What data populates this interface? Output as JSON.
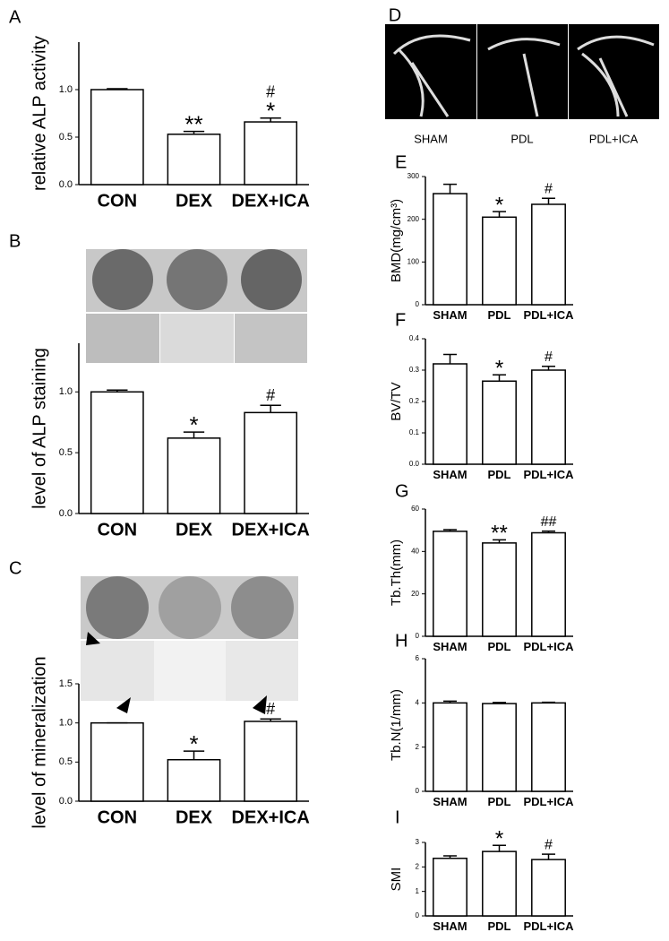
{
  "chart_data": [
    {
      "type": "bar",
      "label": "A",
      "ylabel": "relative ALP activity",
      "categories": [
        "CON",
        "DEX",
        "DEX+ICA"
      ],
      "values": [
        1.0,
        0.53,
        0.66
      ],
      "errors": [
        0.01,
        0.03,
        0.04
      ],
      "annotations": [
        null,
        [
          "**"
        ],
        [
          "#",
          "*"
        ]
      ],
      "ylim": [
        0,
        1.5
      ],
      "yticks": [
        {
          "value": 0,
          "label": "0.0"
        },
        {
          "value": 0.5,
          "label": "0.5"
        },
        {
          "value": 1,
          "label": "1.0"
        }
      ],
      "color": "#ffffff"
    },
    {
      "type": "bar",
      "label": "B",
      "ylabel": "level of ALP staining",
      "categories": [
        "CON",
        "DEX",
        "DEX+ICA"
      ],
      "values": [
        1.0,
        0.62,
        0.83
      ],
      "errors": [
        0.015,
        0.05,
        0.06
      ],
      "annotations": [
        null,
        [
          "*"
        ],
        [
          "#"
        ]
      ],
      "ylim": [
        0,
        1.4
      ],
      "yticks": [
        {
          "value": 0,
          "label": "0.0"
        },
        {
          "value": 0.5,
          "label": "0.5"
        },
        {
          "value": 1,
          "label": "1.0"
        }
      ],
      "color": "#ffffff"
    },
    {
      "type": "bar",
      "label": "C",
      "ylabel": "level of mineralization",
      "categories": [
        "CON",
        "DEX",
        "DEX+ICA"
      ],
      "values": [
        1.0,
        0.53,
        1.02
      ],
      "errors": [
        0.0,
        0.11,
        0.03
      ],
      "annotations": [
        null,
        [
          "*"
        ],
        [
          "#"
        ]
      ],
      "ylim": [
        0,
        1.5
      ],
      "yticks": [
        {
          "value": 0,
          "label": "0.0"
        },
        {
          "value": 0.5,
          "label": "0.5"
        },
        {
          "value": 1,
          "label": "1.0"
        },
        {
          "value": 1.5,
          "label": "1.5"
        }
      ],
      "color": "#ffffff"
    },
    {
      "type": "bar",
      "label": "E",
      "ylabel": "BMD(mg/cm³)",
      "categories": [
        "SHAM",
        "PDL",
        "PDL+ICA"
      ],
      "values": [
        260,
        205,
        235
      ],
      "errors": [
        22,
        13,
        14
      ],
      "annotations": [
        null,
        [
          "*"
        ],
        [
          "#"
        ]
      ],
      "ylim": [
        0,
        300
      ],
      "yticks": [
        0,
        100,
        200,
        300
      ],
      "color": "#ffffff"
    },
    {
      "type": "bar",
      "label": "F",
      "ylabel": "BV/TV",
      "categories": [
        "SHAM",
        "PDL",
        "PDL+ICA"
      ],
      "values": [
        0.32,
        0.265,
        0.3
      ],
      "errors": [
        0.03,
        0.02,
        0.012
      ],
      "annotations": [
        null,
        [
          "*"
        ],
        [
          "#"
        ]
      ],
      "ylim": [
        0,
        0.4
      ],
      "yticks": [
        {
          "value": 0,
          "label": "0.0"
        },
        0.1,
        0.2,
        0.3,
        0.4
      ],
      "color": "#ffffff"
    },
    {
      "type": "bar",
      "label": "G",
      "ylabel": "Tb.Th(mm)",
      "categories": [
        "SHAM",
        "PDL",
        "PDL+ICA"
      ],
      "values": [
        49.5,
        44,
        48.8
      ],
      "errors": [
        0.8,
        1.5,
        0.8
      ],
      "annotations": [
        null,
        [
          "**"
        ],
        [
          "##"
        ]
      ],
      "ylim": [
        0,
        60
      ],
      "yticks": [
        0,
        20,
        40,
        60
      ],
      "color": "#ffffff"
    },
    {
      "type": "bar",
      "label": "H",
      "ylabel": "Tb.N(1/mm)",
      "categories": [
        "SHAM",
        "PDL",
        "PDL+ICA"
      ],
      "values": [
        4.0,
        3.97,
        4.0
      ],
      "errors": [
        0.08,
        0.05,
        0.03
      ],
      "annotations": [
        null,
        null,
        null
      ],
      "ylim": [
        0,
        6
      ],
      "yticks": [
        0,
        2,
        4,
        6
      ],
      "color": "#ffffff"
    },
    {
      "type": "bar",
      "label": "I",
      "ylabel": "SMI",
      "categories": [
        "SHAM",
        "PDL",
        "PDL+ICA"
      ],
      "values": [
        2.35,
        2.63,
        2.3
      ],
      "errors": [
        0.1,
        0.25,
        0.22
      ],
      "annotations": [
        null,
        [
          "*"
        ],
        [
          "#"
        ]
      ],
      "ylim": [
        0,
        3
      ],
      "yticks": [
        0,
        1,
        2,
        3
      ],
      "color": "#ffffff"
    }
  ],
  "image_panels": [
    {
      "label": "D",
      "captions": [
        "SHAM",
        "PDL",
        "PDL+ICA"
      ]
    }
  ]
}
